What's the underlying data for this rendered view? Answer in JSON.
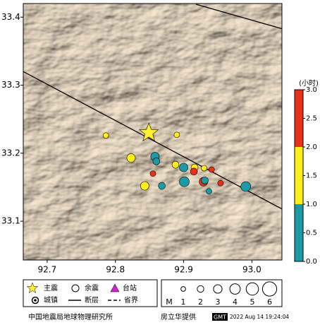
{
  "chart_data": {
    "type": "scatter",
    "xlim": [
      92.665,
      93.044
    ],
    "ylim": [
      33.043,
      33.42
    ],
    "xticks": [
      92.7,
      92.8,
      92.9,
      {
        "value": 93.0,
        "label": "93.0"
      }
    ],
    "yticks": [
      33.1,
      33.2,
      33.3,
      33.4
    ],
    "faults": [
      {
        "x": [
          92.665,
          93.044
        ],
        "y": [
          33.32,
          33.118
        ]
      },
      {
        "x": [
          92.918,
          93.044
        ],
        "y": [
          33.419,
          33.383
        ]
      }
    ],
    "main_shock": {
      "x": 92.849,
      "y": 33.23,
      "color": "#ffee33"
    },
    "aftershocks": {
      "x": [
        92.786,
        92.89,
        92.823,
        92.858,
        92.86,
        92.855,
        92.888,
        92.9,
        92.916,
        92.915,
        92.93,
        92.941,
        92.843,
        92.868,
        92.901,
        92.929,
        92.931,
        92.954,
        92.937,
        92.991
      ],
      "y": [
        33.226,
        33.227,
        33.193,
        33.195,
        33.188,
        33.17,
        33.183,
        33.179,
        33.179,
        33.173,
        33.178,
        33.176,
        33.152,
        33.152,
        33.158,
        33.158,
        33.16,
        33.156,
        33.144,
        33.151
      ],
      "sizes": [
        1.5,
        1.5,
        3,
        3,
        2.2,
        1.5,
        2.2,
        3,
        2.2,
        2.2,
        1.5,
        1.5,
        3,
        2.2,
        3.7,
        3,
        2.2,
        1.5,
        1.5,
        3.7
      ],
      "times": [
        1.5,
        1.5,
        1.5,
        0.5,
        0.5,
        2.5,
        1.5,
        0.5,
        1.5,
        2.5,
        1.5,
        2.5,
        1.5,
        0.5,
        0.5,
        2.5,
        0.5,
        2.5,
        0.5,
        0.5
      ]
    },
    "colorbar": {
      "label": "(小时)",
      "lim": [
        0,
        3
      ],
      "ticks": [
        {
          "value": 0,
          "label": "0.0"
        },
        0.5,
        {
          "value": 1,
          "label": "1.0"
        },
        1.5,
        {
          "value": 2,
          "label": "2.0"
        },
        2.5,
        {
          "value": 3,
          "label": "3.0"
        }
      ],
      "bands": [
        {
          "from": 0,
          "to": 1,
          "color": "#1e9aa6"
        },
        {
          "from": 1,
          "to": 2,
          "color": "#ffee1a"
        },
        {
          "from": 2,
          "to": 3,
          "color": "#e8311a"
        }
      ]
    },
    "legend": {
      "main": "主震",
      "after": "余震",
      "station": "台站",
      "town": "城镇",
      "fault": "断层",
      "border": "省界"
    },
    "magnitude_legend": {
      "title": "M",
      "values": [
        1,
        2,
        3,
        4,
        5,
        6
      ]
    },
    "footer": {
      "institute": "中国地震局地球物理研究所",
      "credit": "房立华提供",
      "gmt": "GMT",
      "timestamp": "2022 Aug 14 19:24:04"
    }
  }
}
